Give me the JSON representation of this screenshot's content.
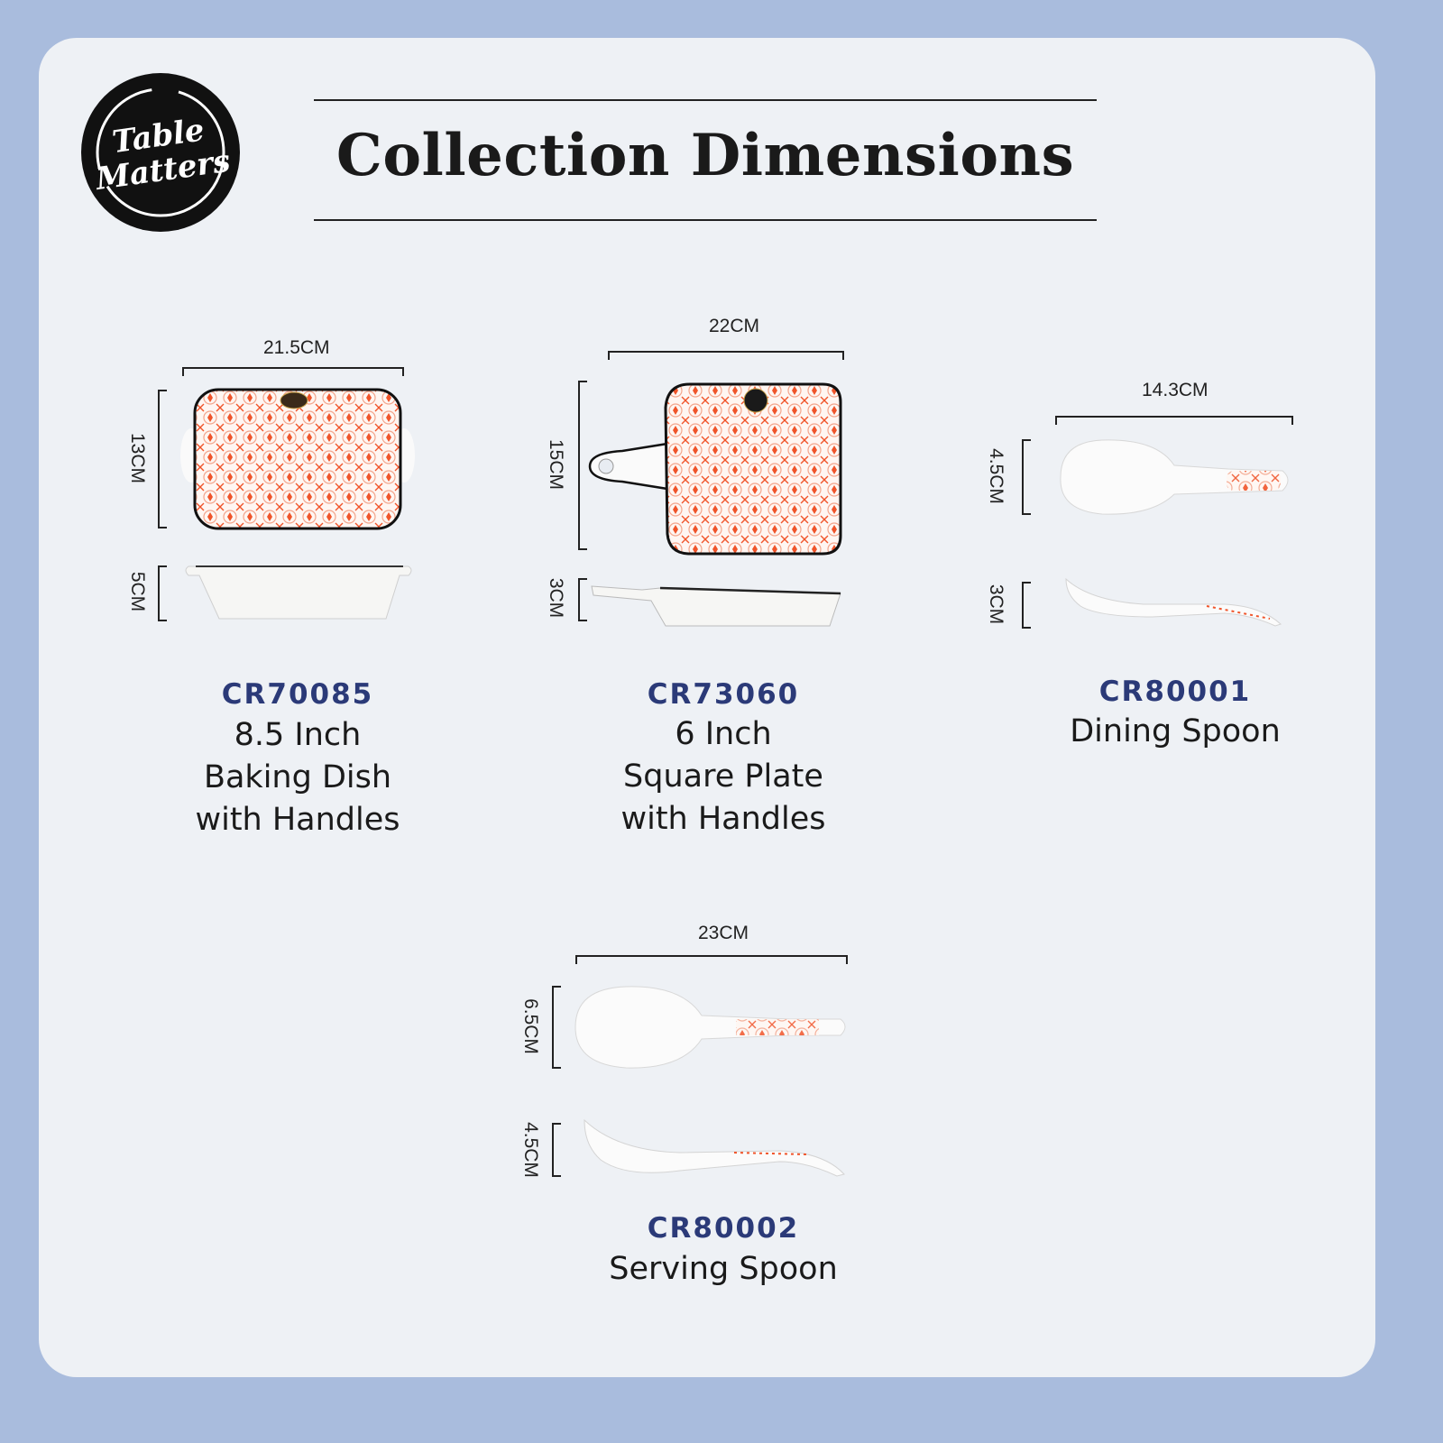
{
  "brand": {
    "logo_text": "Table Matters"
  },
  "header": {
    "title": "Collection Dimensions"
  },
  "colors": {
    "background": "#a9bcdd",
    "card": "#eef1f5",
    "code": "#2b3a78",
    "pattern": "#f0542a"
  },
  "products": [
    {
      "code": "CR70085",
      "name_lines": [
        "8.5 Inch",
        "Baking Dish",
        "with Handles"
      ],
      "width": "21.5CM",
      "length": "13CM",
      "height": "5CM"
    },
    {
      "code": "CR73060",
      "name_lines": [
        "6 Inch",
        "Square Plate",
        "with Handles"
      ],
      "width": "22CM",
      "length": "15CM",
      "height": "3CM"
    },
    {
      "code": "CR80001",
      "name_lines": [
        "Dining Spoon"
      ],
      "width": "14.3CM",
      "length": "4.5CM",
      "height": "3CM"
    },
    {
      "code": "CR80002",
      "name_lines": [
        "Serving Spoon"
      ],
      "width": "23CM",
      "length": "6.5CM",
      "height": "4.5CM"
    }
  ]
}
